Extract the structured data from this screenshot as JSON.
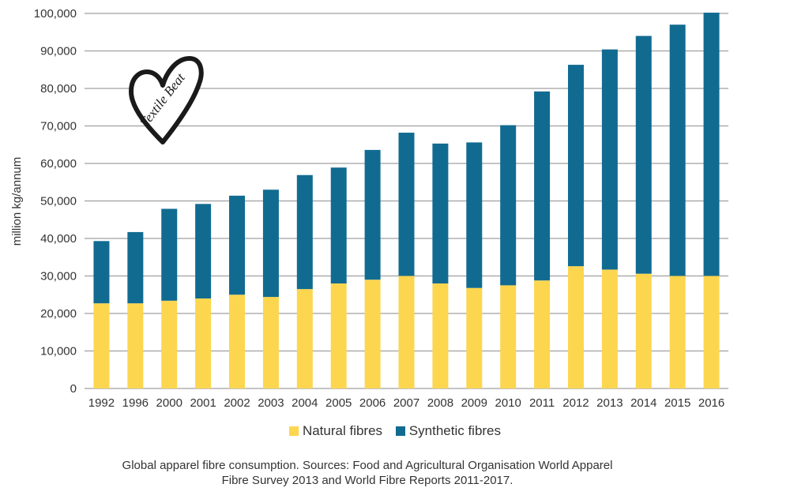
{
  "chart_data": {
    "type": "bar",
    "stacked": true,
    "title": "",
    "xlabel": "",
    "ylabel": "million kg/annum",
    "ylim": [
      0,
      100000
    ],
    "yticks": [
      0,
      10000,
      20000,
      30000,
      40000,
      50000,
      60000,
      70000,
      80000,
      90000,
      100000
    ],
    "ytick_labels": [
      "0",
      "10,000",
      "20,000",
      "30,000",
      "40,000",
      "50,000",
      "60,000",
      "70,000",
      "80,000",
      "90,000",
      "100,000"
    ],
    "grid": true,
    "legend_position": "bottom-center",
    "categories": [
      "1992",
      "1996",
      "2000",
      "2001",
      "2002",
      "2003",
      "2004",
      "2005",
      "2006",
      "2007",
      "2008",
      "2009",
      "2010",
      "2011",
      "2012",
      "2013",
      "2014",
      "2015",
      "2016"
    ],
    "series": [
      {
        "name": "Natural fibres",
        "color": "#FDD64F",
        "values": [
          22700,
          22700,
          23400,
          24000,
          25000,
          24400,
          26500,
          28000,
          29000,
          30000,
          28000,
          26800,
          27500,
          28800,
          32600,
          31700,
          30600,
          30000,
          30000
        ]
      },
      {
        "name": "Synthetic fibres",
        "color": "#116B91",
        "values": [
          16600,
          19000,
          24500,
          25200,
          26400,
          28600,
          30400,
          30900,
          34600,
          38200,
          37300,
          38800,
          42700,
          50400,
          53700,
          58700,
          63400,
          67000,
          70200
        ]
      }
    ]
  },
  "legend": {
    "natural_label": "Natural fibres",
    "synthetic_label": "Synthetic fibres"
  },
  "caption": {
    "line1": "Global apparel fibre consumption. Sources: Food and Agricultural Organisation World Apparel",
    "line2": "Fibre Survey 2013 and World Fibre Reports 2011-2017."
  },
  "logo": {
    "text": "Textile Beat"
  }
}
